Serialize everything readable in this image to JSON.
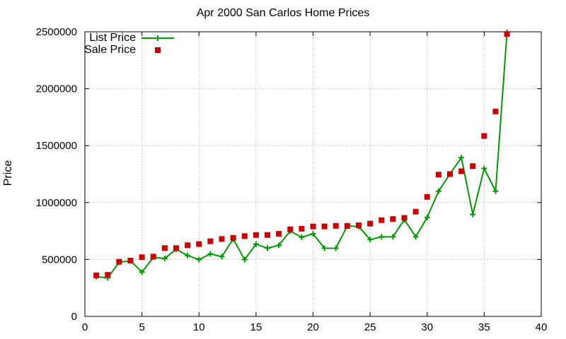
{
  "chart_data": {
    "type": "line",
    "title": "Apr 2000 San Carlos Home Prices",
    "xlabel": "",
    "ylabel": "Price",
    "xlim": [
      0,
      40
    ],
    "ylim": [
      0,
      2500000
    ],
    "xticks": [
      0,
      5,
      10,
      15,
      20,
      25,
      30,
      35,
      40
    ],
    "yticks": [
      0,
      500000,
      1000000,
      1500000,
      2000000,
      2500000
    ],
    "grid": true,
    "legend_position": "top-left",
    "series": [
      {
        "name": "List Price",
        "style": "lines+points",
        "color": "#009900",
        "x": [
          1,
          2,
          3,
          4,
          5,
          6,
          7,
          8,
          9,
          10,
          11,
          12,
          13,
          14,
          15,
          16,
          17,
          18,
          19,
          20,
          21,
          22,
          23,
          24,
          25,
          26,
          27,
          28,
          29,
          30,
          31,
          32,
          33,
          34,
          35,
          36,
          37
        ],
        "y": [
          349000,
          339000,
          475000,
          489000,
          389000,
          519000,
          509000,
          589000,
          535000,
          499000,
          549000,
          525000,
          680000,
          499000,
          635000,
          599000,
          625000,
          749000,
          695000,
          725000,
          599000,
          599000,
          795000,
          789000,
          675000,
          699000,
          699000,
          850000,
          699000,
          869000,
          1100000,
          1250000,
          1395000,
          895000,
          1299000,
          1100000,
          2495000
        ]
      },
      {
        "name": "Sale Price",
        "style": "points",
        "color": "#cc0000",
        "x": [
          1,
          2,
          3,
          4,
          5,
          6,
          7,
          8,
          9,
          10,
          11,
          12,
          13,
          14,
          15,
          16,
          17,
          18,
          19,
          20,
          21,
          22,
          23,
          24,
          25,
          26,
          27,
          28,
          29,
          30,
          31,
          32,
          33,
          34,
          35,
          36,
          37
        ],
        "y": [
          360000,
          365000,
          480000,
          490000,
          520000,
          525000,
          600000,
          600000,
          625000,
          635000,
          660000,
          680000,
          690000,
          705000,
          715000,
          715000,
          725000,
          765000,
          770000,
          790000,
          790000,
          795000,
          795000,
          800000,
          815000,
          845000,
          855000,
          865000,
          920000,
          1050000,
          1245000,
          1250000,
          1275000,
          1320000,
          1585000,
          1800000,
          2480000
        ]
      }
    ]
  }
}
